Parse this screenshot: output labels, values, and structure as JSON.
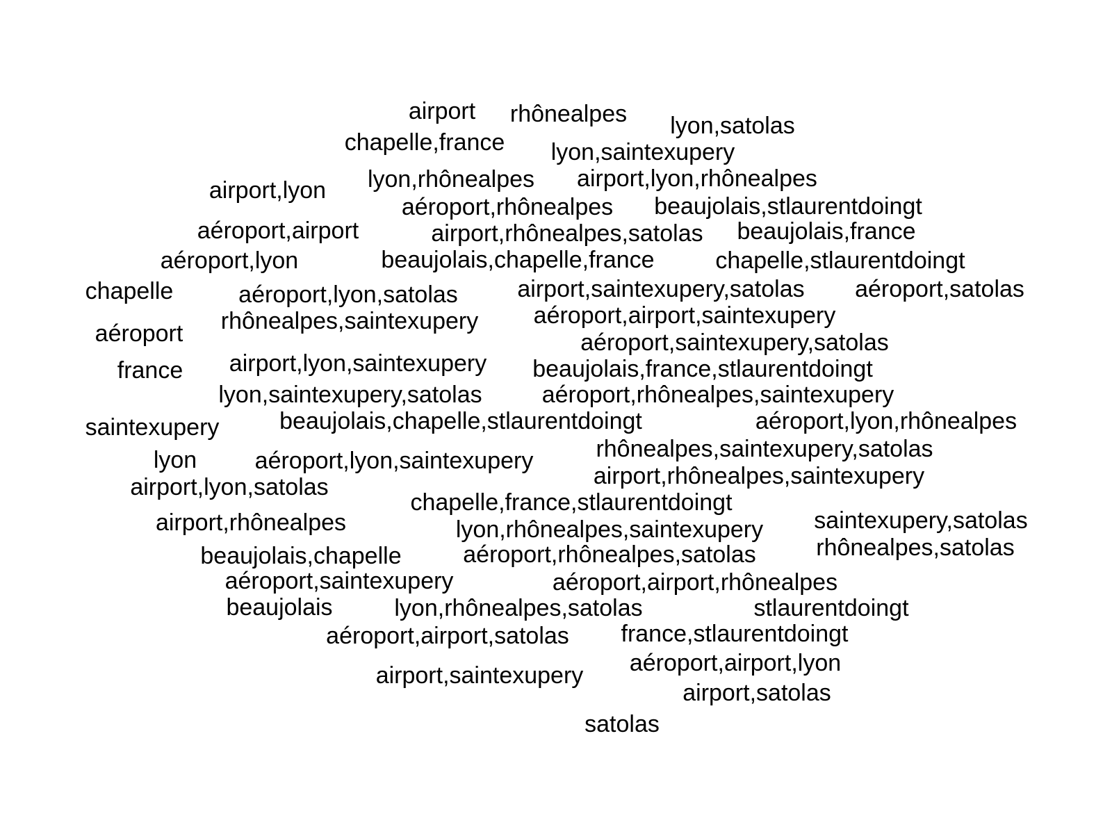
{
  "word_cloud": {
    "text_color": "#000000",
    "background_color": "#ffffff",
    "words": [
      "airport",
      "rhônealpes",
      "lyon,satolas",
      "chapelle,france",
      "lyon,saintexupery",
      "airport,lyon",
      "lyon,rhônealpes",
      "airport,lyon,rhônealpes",
      "aéroport,rhônealpes",
      "beaujolais,stlaurentdoingt",
      "aéroport,airport",
      "airport,rhônealpes,satolas",
      "beaujolais,france",
      "aéroport,lyon",
      "beaujolais,chapelle,france",
      "chapelle,stlaurentdoingt",
      "chapelle",
      "aéroport,lyon,satolas",
      "airport,saintexupery,satolas",
      "aéroport,satolas",
      "rhônealpes,saintexupery",
      "aéroport,airport,saintexupery",
      "aéroport",
      "aéroport,saintexupery,satolas",
      "france",
      "airport,lyon,saintexupery",
      "beaujolais,france,stlaurentdoingt",
      "lyon,saintexupery,satolas",
      "aéroport,rhônealpes,saintexupery",
      "saintexupery",
      "beaujolais,chapelle,stlaurentdoingt",
      "aéroport,lyon,rhônealpes",
      "rhônealpes,saintexupery,satolas",
      "lyon",
      "aéroport,lyon,saintexupery",
      "airport,rhônealpes,saintexupery",
      "airport,lyon,satolas",
      "chapelle,france,stlaurentdoingt",
      "airport,rhônealpes",
      "saintexupery,satolas",
      "lyon,rhônealpes,saintexupery",
      "beaujolais,chapelle",
      "aéroport,rhônealpes,satolas",
      "rhônealpes,satolas",
      "aéroport,saintexupery",
      "aéroport,airport,rhônealpes",
      "beaujolais",
      "lyon,rhônealpes,satolas",
      "stlaurentdoingt",
      "aéroport,airport,satolas",
      "france,stlaurentdoingt",
      "aéroport,airport,lyon",
      "airport,saintexupery",
      "airport,satolas",
      "satolas"
    ]
  }
}
